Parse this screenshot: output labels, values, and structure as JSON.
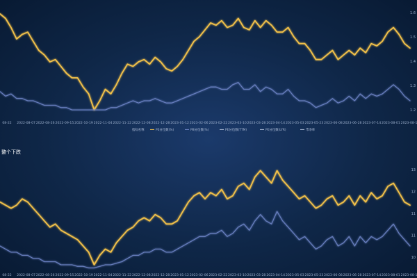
{
  "colors": {
    "primary": "#f2c14a",
    "secondary": "#6f86c9",
    "tick_text": "#9fb2cf",
    "legend_text": "#aebcd6"
  },
  "legend": {
    "items": [
      {
        "label": "指标名称",
        "series": ""
      },
      {
        "label": "PE分位数(%)",
        "series": "primary"
      },
      {
        "label": "PB分位数(%)",
        "series": "secondary"
      },
      {
        "label": "PE分位数(TTM)",
        "series": ""
      },
      {
        "label": "PE分位数(LYR)",
        "series": ""
      },
      {
        "label": "市净率",
        "series": ""
      }
    ]
  },
  "chart_data": [
    {
      "type": "line",
      "panel": "top",
      "title": "",
      "x_ticks": [
        "08-22",
        "2022-08-07",
        "2022-08-26",
        "2022-09-15",
        "2022-10-19",
        "2022-11-04",
        "2022-11-22",
        "2022-12-08",
        "2022-12-28",
        "2023-01-12",
        "2023-02-06",
        "2023-02-22",
        "2023-03-10",
        "2023-03-28",
        "2023-04-14",
        "2023-05-03",
        "2023-05-23",
        "2023-06-08",
        "2023-06-28",
        "2023-07-14",
        "2023-08-01",
        "2023-08-17"
      ],
      "y_ticks_right": [
        "1.6",
        "1.5",
        "1.4",
        "1.3",
        "1.2"
      ],
      "ylim": [
        1.18,
        1.66
      ],
      "series": [
        {
          "name": "",
          "color_key": "primary",
          "values": [
            1.63,
            1.61,
            1.57,
            1.52,
            1.54,
            1.55,
            1.51,
            1.47,
            1.45,
            1.42,
            1.43,
            1.4,
            1.37,
            1.35,
            1.35,
            1.31,
            1.28,
            1.21,
            1.25,
            1.3,
            1.28,
            1.32,
            1.37,
            1.41,
            1.4,
            1.42,
            1.43,
            1.41,
            1.44,
            1.42,
            1.39,
            1.38,
            1.4,
            1.43,
            1.47,
            1.51,
            1.53,
            1.56,
            1.59,
            1.58,
            1.6,
            1.57,
            1.58,
            1.61,
            1.57,
            1.56,
            1.6,
            1.57,
            1.6,
            1.58,
            1.55,
            1.55,
            1.57,
            1.53,
            1.5,
            1.5,
            1.47,
            1.43,
            1.43,
            1.45,
            1.47,
            1.43,
            1.45,
            1.47,
            1.45,
            1.48,
            1.46,
            1.5,
            1.49,
            1.51,
            1.55,
            1.57,
            1.54,
            1.5,
            1.48
          ]
        },
        {
          "name": "",
          "color_key": "secondary",
          "values": [
            1.29,
            1.27,
            1.28,
            1.26,
            1.26,
            1.25,
            1.25,
            1.24,
            1.23,
            1.23,
            1.23,
            1.22,
            1.22,
            1.21,
            1.21,
            1.21,
            1.21,
            1.21,
            1.21,
            1.21,
            1.22,
            1.22,
            1.23,
            1.24,
            1.25,
            1.24,
            1.25,
            1.25,
            1.26,
            1.25,
            1.24,
            1.24,
            1.25,
            1.26,
            1.27,
            1.28,
            1.29,
            1.3,
            1.31,
            1.31,
            1.3,
            1.3,
            1.32,
            1.33,
            1.3,
            1.3,
            1.32,
            1.29,
            1.31,
            1.3,
            1.28,
            1.28,
            1.3,
            1.27,
            1.25,
            1.25,
            1.24,
            1.22,
            1.23,
            1.24,
            1.26,
            1.24,
            1.25,
            1.27,
            1.25,
            1.28,
            1.26,
            1.28,
            1.27,
            1.28,
            1.3,
            1.32,
            1.3,
            1.27,
            1.25
          ]
        }
      ]
    },
    {
      "type": "line",
      "panel": "bottom",
      "title": "整个下跌",
      "x_ticks": [
        "08-22",
        "2022-08-07",
        "2022-08-26",
        "2022-09-15",
        "2022-10-19",
        "2022-11-04",
        "2022-11-22",
        "2022-12-08",
        "2022-12-28",
        "2023-01-12",
        "2023-02-06",
        "2023-02-22",
        "2023-03-10",
        "2023-03-28",
        "2023-04-14",
        "2023-05-03",
        "2023-05-23",
        "2023-06-08",
        "2023-06-28",
        "2023-07-14",
        "2023-08-01",
        "2023-08-17"
      ],
      "y_ticks_right": [
        "13",
        "12",
        "11",
        "11",
        "10"
      ],
      "ylim": [
        9.8,
        13.3
      ],
      "series": [
        {
          "name": "",
          "color_key": "primary",
          "values": [
            12.0,
            11.9,
            11.8,
            11.9,
            12.1,
            12.0,
            11.8,
            11.6,
            11.4,
            11.2,
            11.3,
            11.1,
            11.0,
            10.9,
            10.8,
            10.6,
            10.4,
            10.0,
            10.3,
            10.5,
            10.4,
            10.7,
            10.9,
            11.1,
            11.2,
            11.4,
            11.5,
            11.4,
            11.6,
            11.5,
            11.3,
            11.3,
            11.4,
            11.7,
            12.0,
            12.2,
            12.3,
            12.1,
            12.3,
            12.2,
            12.4,
            12.1,
            12.2,
            12.5,
            12.6,
            12.4,
            12.8,
            13.0,
            12.8,
            12.6,
            13.0,
            12.7,
            12.5,
            12.3,
            12.1,
            12.2,
            12.0,
            11.8,
            11.9,
            12.1,
            12.2,
            11.9,
            12.0,
            12.2,
            11.9,
            12.2,
            12.0,
            12.3,
            12.1,
            12.2,
            12.5,
            12.6,
            12.3,
            12.0,
            11.9
          ]
        },
        {
          "name": "",
          "color_key": "secondary",
          "values": [
            10.6,
            10.5,
            10.4,
            10.4,
            10.3,
            10.3,
            10.2,
            10.2,
            10.1,
            10.1,
            10.1,
            10.0,
            10.0,
            10.0,
            9.95,
            9.95,
            9.9,
            9.9,
            9.95,
            10.0,
            10.0,
            10.05,
            10.1,
            10.2,
            10.3,
            10.3,
            10.4,
            10.4,
            10.5,
            10.5,
            10.4,
            10.4,
            10.5,
            10.6,
            10.7,
            10.8,
            10.9,
            10.9,
            11.0,
            11.0,
            11.1,
            10.9,
            11.0,
            11.2,
            11.3,
            11.1,
            11.4,
            11.6,
            11.4,
            11.3,
            11.7,
            11.4,
            11.2,
            11.0,
            10.8,
            10.9,
            10.7,
            10.5,
            10.6,
            10.8,
            10.9,
            10.6,
            10.7,
            10.9,
            10.6,
            10.9,
            10.7,
            10.9,
            10.8,
            10.9,
            11.1,
            11.3,
            11.0,
            10.8,
            10.6
          ]
        }
      ]
    }
  ]
}
